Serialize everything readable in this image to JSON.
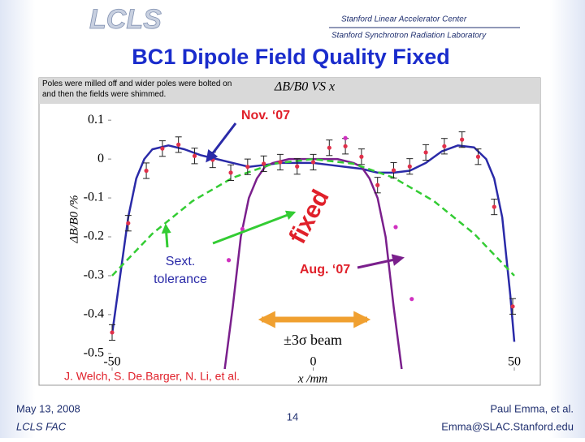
{
  "header": {
    "logo": "LCLS",
    "org_1": "Stanford Linear Accelerator Center",
    "org_2": "Stanford Synchrotron Radiation Laboratory",
    "title": "BC1 Dipole Field Quality Fixed"
  },
  "chart_data": {
    "type": "line",
    "note": "Poles were milled off and wider poles were bolted on and then the fields were shimmed.",
    "title": "ΔB/B0 VS x",
    "xlabel": "x /mm",
    "ylabel": "ΔB/B0 /%",
    "xlim": [
      -50,
      50
    ],
    "ylim": [
      -0.54,
      0.14
    ],
    "xticks": [
      -50,
      0,
      50
    ],
    "yticks": [
      0.1,
      0,
      -0.1,
      -0.2,
      -0.3,
      -0.4,
      -0.5
    ],
    "series": [
      {
        "type": "line",
        "color": "#2a2aa8",
        "dash": false,
        "x": [
          -50,
          -48,
          -46,
          -44,
          -42,
          -40,
          -36,
          -32,
          -28,
          -24,
          -20,
          -16,
          -12,
          -8,
          -4,
          0,
          4,
          8,
          12,
          16,
          20,
          24,
          28,
          32,
          36,
          40,
          43,
          45,
          47,
          48,
          49,
          50
        ],
        "values": [
          -0.45,
          -0.3,
          -0.15,
          -0.05,
          0.0,
          0.025,
          0.035,
          0.025,
          0.01,
          0.0,
          -0.01,
          -0.02,
          -0.015,
          -0.01,
          -0.01,
          -0.01,
          -0.015,
          -0.02,
          -0.025,
          -0.035,
          -0.035,
          -0.03,
          -0.01,
          0.02,
          0.035,
          0.03,
          0.0,
          -0.05,
          -0.15,
          -0.25,
          -0.35,
          -0.47
        ]
      },
      {
        "type": "line",
        "color": "#7a1f8c",
        "dash": false,
        "x": [
          -22,
          -20,
          -18,
          -16,
          -14,
          -12,
          -10,
          -6,
          0,
          6,
          10,
          12,
          14,
          16,
          18,
          20,
          22
        ],
        "values": [
          -0.54,
          -0.38,
          -0.2,
          -0.1,
          -0.05,
          -0.02,
          -0.01,
          0,
          0,
          0,
          -0.01,
          -0.02,
          -0.05,
          -0.1,
          -0.2,
          -0.38,
          -0.54
        ]
      },
      {
        "type": "line",
        "color": "#33cc33",
        "dash": true,
        "x": [
          -50,
          -40,
          -30,
          -20,
          -10,
          0,
          10,
          20,
          30,
          40,
          50
        ],
        "values": [
          -0.3,
          -0.192,
          -0.108,
          -0.048,
          -0.012,
          0,
          -0.012,
          -0.048,
          -0.108,
          -0.192,
          -0.3
        ]
      },
      {
        "type": "scatter",
        "color": "#e0304a",
        "x": [
          -50,
          -46,
          -41.5,
          -37.5,
          -33.5,
          -29.5,
          -25,
          -20.5,
          -16.3,
          -12.3,
          -8.2,
          -4,
          0,
          4,
          8,
          12,
          16,
          20,
          24,
          28,
          32.6,
          37,
          41,
          45,
          49.6
        ],
        "values": [
          -0.446,
          -0.165,
          -0.03,
          0.027,
          0.037,
          0.008,
          -0.002,
          -0.035,
          -0.02,
          -0.012,
          -0.008,
          -0.019,
          -0.008,
          0.029,
          0.033,
          0.006,
          -0.067,
          -0.029,
          -0.019,
          0.017,
          0.033,
          0.05,
          0.006,
          -0.123,
          -0.379
        ],
        "errors": [
          0.02,
          0.02,
          0.02,
          0.02,
          0.02,
          0.02,
          0.02,
          0.02,
          0.02,
          0.02,
          0.02,
          0.02,
          0.02,
          0.02,
          0.02,
          0.02,
          0.02,
          0.02,
          0.02,
          0.02,
          0.02,
          0.02,
          0.02,
          0.02,
          0.02
        ]
      },
      {
        "type": "scatter",
        "color": "#d030c0",
        "x": [
          -21,
          -17.6,
          8,
          20.5,
          24.5
        ],
        "values": [
          -0.26,
          -0.18,
          0.054,
          -0.175,
          -0.36
        ]
      }
    ],
    "annotations": {
      "nov": "Nov. ‘07",
      "fixed": "fixed",
      "sext": "Sext.",
      "tolerance": "tolerance",
      "aug": "Aug. ‘07",
      "beam": "±3σ beam",
      "credit": "J. Welch, S. De.Barger, N. Li, et al."
    }
  },
  "footer": {
    "date": "May 13, 2008",
    "meeting": "LCLS FAC",
    "page": "14",
    "author": "Paul Emma, et al.",
    "email": "Emma@SLAC.Stanford.edu"
  }
}
